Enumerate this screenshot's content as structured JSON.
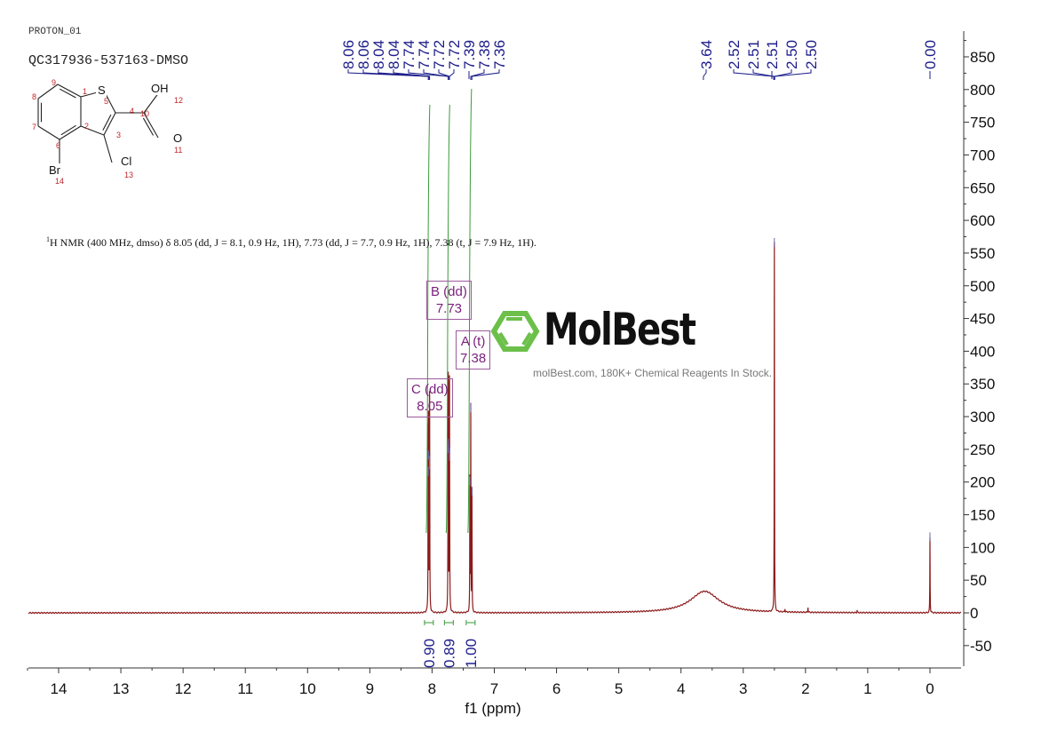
{
  "header": {
    "experiment": "PROTON_01",
    "sample": "QC317936-537163-DMSO"
  },
  "structure": {
    "atoms": [
      "S",
      "OH",
      "O",
      "Cl",
      "Br"
    ],
    "atom_numbers": [
      "1",
      "2",
      "3",
      "4",
      "5",
      "6",
      "7",
      "8",
      "9",
      "10",
      "11",
      "12",
      "13",
      "14"
    ]
  },
  "nmr_description": {
    "sup": "1",
    "text": "H NMR (400 MHz, dmso) δ 8.05 (dd, J = 8.1, 0.9 Hz, 1H), 7.73 (dd, J = 7.7, 0.9 Hz, 1H), 7.38 (t, J = 7.9 Hz, 1H)."
  },
  "multiplets": [
    {
      "name": "B (dd)",
      "shift": "7.73"
    },
    {
      "name": "A (t)",
      "shift": "7.38"
    },
    {
      "name": "C (dd)",
      "shift": "8.05"
    }
  ],
  "watermark": {
    "logo": "MolBest",
    "tagline": "molBest.com, 180K+ Chemical Reagents In Stock."
  },
  "chart_data": {
    "type": "line",
    "title": "",
    "xlabel": "f1 (ppm)",
    "ylabel": "",
    "xlim": [
      14.5,
      -0.5
    ],
    "ylim": [
      -80,
      890
    ],
    "xticks": [
      "14",
      "13",
      "12",
      "11",
      "10",
      "9",
      "8",
      "7",
      "6",
      "5",
      "4",
      "3",
      "2",
      "1",
      "0"
    ],
    "yticks": [
      "-50",
      "0",
      "50",
      "100",
      "150",
      "200",
      "250",
      "300",
      "350",
      "400",
      "450",
      "500",
      "550",
      "600",
      "650",
      "700",
      "750",
      "800",
      "850"
    ],
    "colors": {
      "spectrum": "#8b1a1a",
      "peak_labels": "#1c1c8a",
      "integrals": "#3a9a3a",
      "multiplets": "#7a1f7a"
    },
    "peaks": [
      {
        "ppm": 8.062,
        "height": 215
      },
      {
        "ppm": 8.058,
        "height": 240
      },
      {
        "ppm": 8.042,
        "height": 225
      },
      {
        "ppm": 8.039,
        "height": 232
      },
      {
        "ppm": 7.742,
        "height": 250
      },
      {
        "ppm": 7.739,
        "height": 258
      },
      {
        "ppm": 7.722,
        "height": 238
      },
      {
        "ppm": 7.719,
        "height": 244
      },
      {
        "ppm": 7.392,
        "height": 200
      },
      {
        "ppm": 7.378,
        "height": 312
      },
      {
        "ppm": 7.359,
        "height": 185
      },
      {
        "ppm": 2.5,
        "height": 565
      },
      {
        "ppm": 0.0,
        "height": 115
      },
      {
        "ppm": 2.33,
        "height": 5
      },
      {
        "ppm": 1.96,
        "height": 8
      },
      {
        "ppm": 1.17,
        "height": 4
      }
    ],
    "broad_peaks": [
      {
        "ppm": 3.62,
        "height": 33,
        "width": 0.28
      }
    ],
    "peak_labels": [
      {
        "label": "8.06",
        "ppm": 8.06
      },
      {
        "label": "8.06",
        "ppm": 8.058
      },
      {
        "label": "8.04",
        "ppm": 8.042
      },
      {
        "label": "8.04",
        "ppm": 8.04
      },
      {
        "label": "7.74",
        "ppm": 7.742
      },
      {
        "label": "7.74",
        "ppm": 7.739
      },
      {
        "label": "7.72",
        "ppm": 7.722
      },
      {
        "label": "7.72",
        "ppm": 7.719
      },
      {
        "label": "7.39",
        "ppm": 7.392
      },
      {
        "label": "7.38",
        "ppm": 7.378
      },
      {
        "label": "7.36",
        "ppm": 7.36
      },
      {
        "label": "3.64",
        "ppm": 3.64
      },
      {
        "label": "2.52",
        "ppm": 2.51
      },
      {
        "label": "2.51",
        "ppm": 2.505
      },
      {
        "label": "2.51",
        "ppm": 2.5
      },
      {
        "label": "2.50",
        "ppm": 2.498
      },
      {
        "label": "2.50",
        "ppm": 2.495
      },
      {
        "label": "0.00",
        "ppm": 0.0
      }
    ],
    "integrals": [
      {
        "ppm": 8.05,
        "value": "0.90"
      },
      {
        "ppm": 7.73,
        "value": "0.89"
      },
      {
        "ppm": 7.38,
        "value": "1.00"
      }
    ]
  }
}
